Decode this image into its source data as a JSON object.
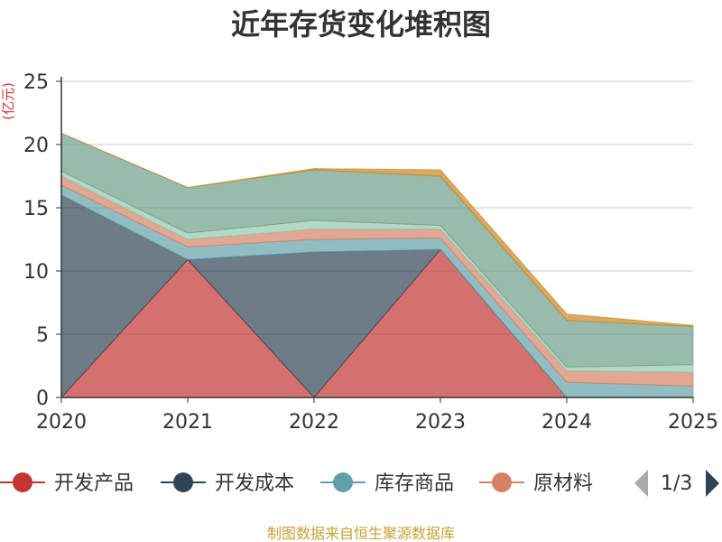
{
  "chart_data": {
    "type": "area",
    "stacked": true,
    "title": "近年存货变化堆积图",
    "ylabel": "(亿元)",
    "xlabel": "",
    "ylim": [
      0,
      25
    ],
    "yticks": [
      0,
      5,
      10,
      15,
      20,
      25
    ],
    "categories": [
      "2020",
      "2021",
      "2022",
      "2023",
      "2024",
      "2025"
    ],
    "grid": true,
    "series": [
      {
        "name": "开发产品",
        "color": "#c23531",
        "values": [
          0,
          10.9,
          0,
          11.7,
          0,
          0
        ]
      },
      {
        "name": "开发成本",
        "color": "#2f4554",
        "values": [
          16,
          0,
          11.5,
          0,
          0,
          0
        ]
      },
      {
        "name": "库存商品",
        "color": "#61a0a8",
        "values": [
          0.8,
          1.0,
          1.0,
          0.9,
          1.2,
          0.9
        ]
      },
      {
        "name": "原材料",
        "color": "#d48265",
        "values": [
          0.7,
          0.6,
          0.8,
          0.7,
          0.9,
          1.1
        ]
      },
      {
        "name": "",
        "color": "#91c7ae",
        "values": [
          0.4,
          0.5,
          0.7,
          0.3,
          0.3,
          0.6
        ]
      },
      {
        "name": "",
        "color": "#6e9e87",
        "values": [
          3.0,
          3.6,
          4.0,
          3.9,
          3.7,
          3.0
        ]
      },
      {
        "name": "",
        "color": "#ca8622",
        "values": [
          0,
          0,
          0.1,
          0.5,
          0.5,
          0.1
        ]
      }
    ],
    "legend": {
      "position": "bottom",
      "items": [
        "开发产品",
        "开发成本",
        "库存商品",
        "原材料"
      ],
      "page": "1/3"
    }
  },
  "source_note": "制图数据来自恒生聚源数据库"
}
